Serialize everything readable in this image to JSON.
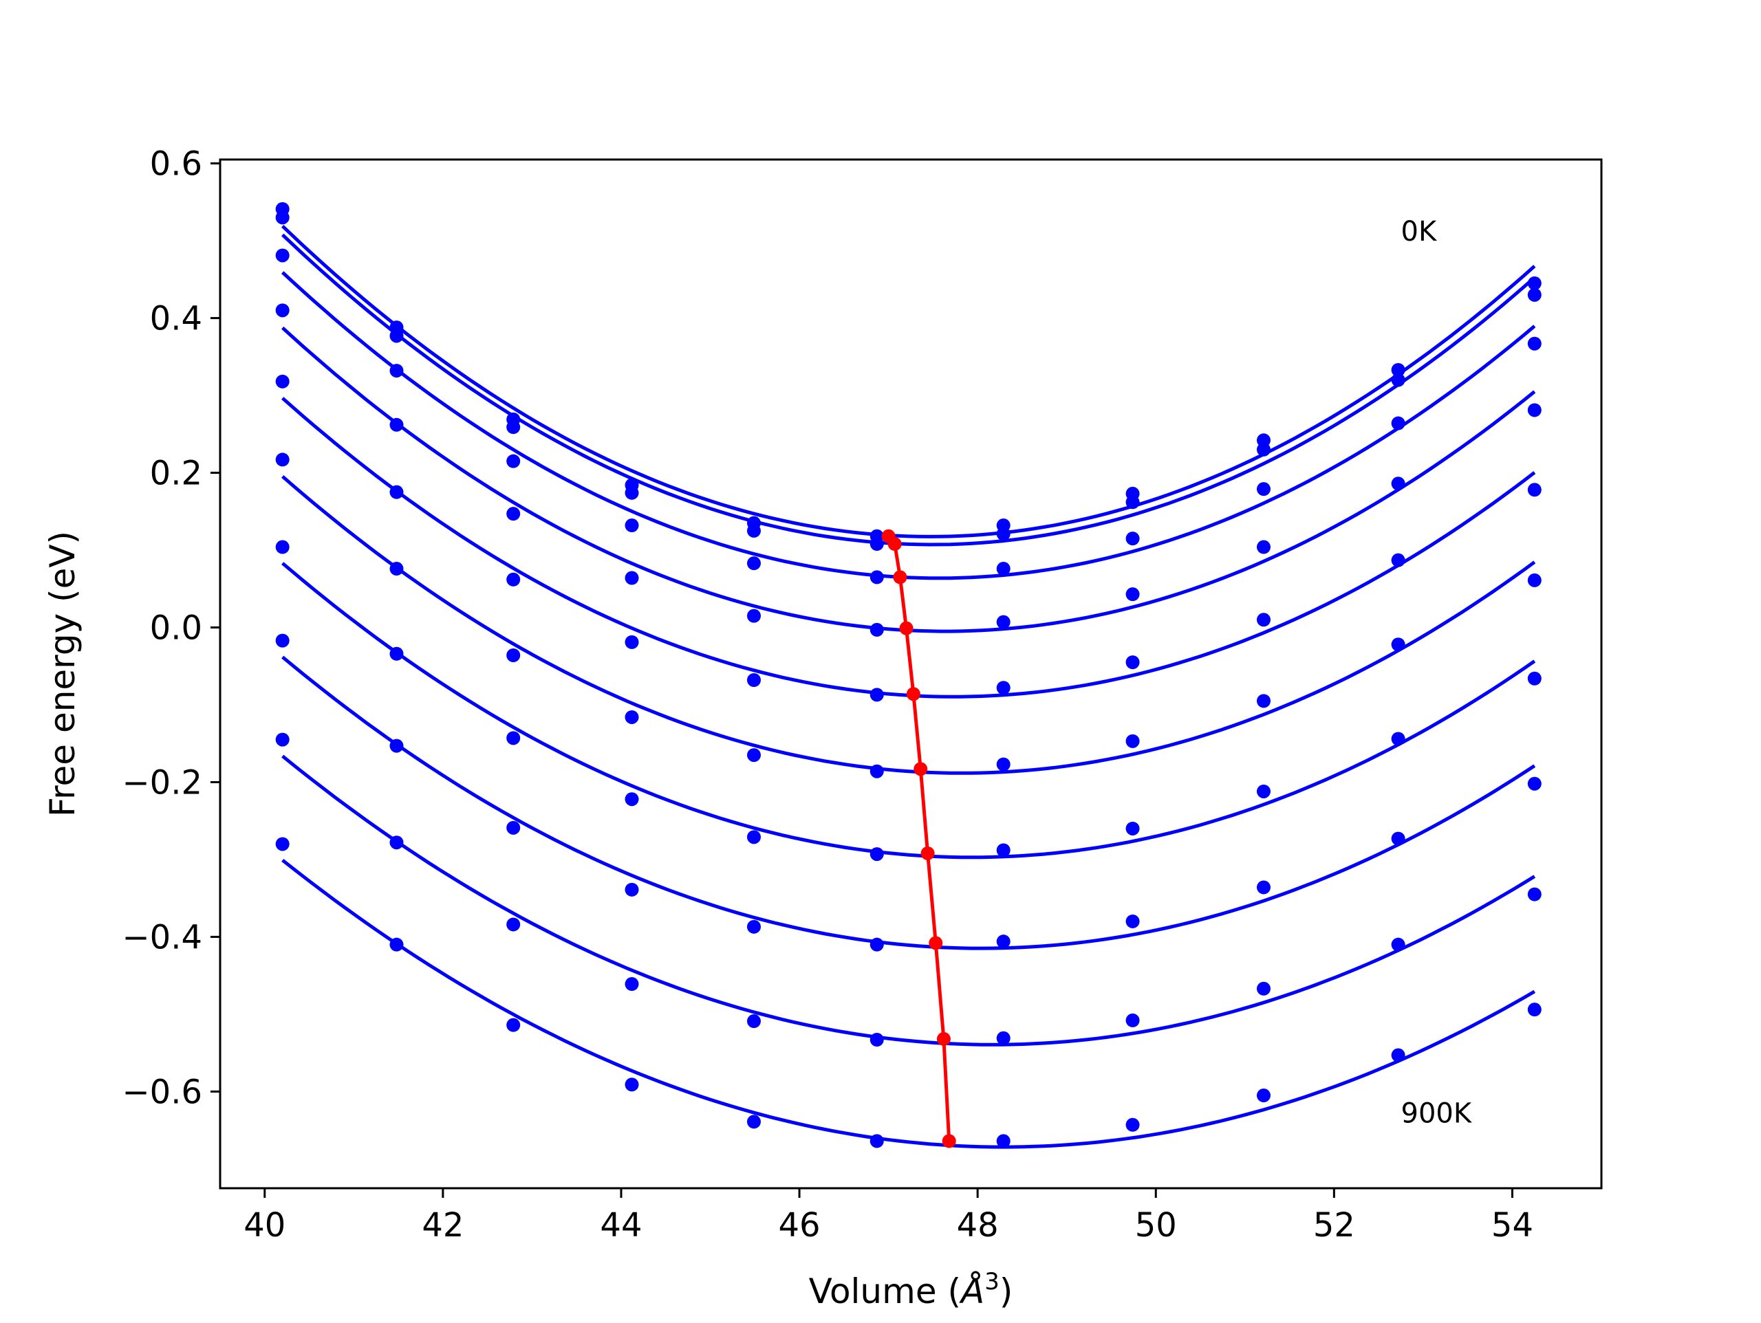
{
  "chart_data": {
    "type": "line",
    "title": "",
    "xlabel": "Volume (",
    "xlabel_symbol": "Å",
    "xlabel_exp": "3",
    "xlabel_close": ")",
    "ylabel": "Free energy (eV)",
    "xlim": [
      39.5,
      55.0
    ],
    "ylim": [
      -0.725,
      0.605
    ],
    "xticks": [
      40,
      42,
      44,
      46,
      48,
      50,
      52,
      54
    ],
    "xtick_labels": [
      "40",
      "42",
      "44",
      "46",
      "48",
      "50",
      "52",
      "54"
    ],
    "yticks": [
      0.6,
      0.4,
      0.2,
      0.0,
      -0.2,
      -0.4,
      -0.6
    ],
    "ytick_labels": [
      "0.6",
      "0.4",
      "0.2",
      "0.0",
      "−0.2",
      "−0.4",
      "−0.6"
    ],
    "grid": false,
    "annotations": [
      {
        "text": "0K",
        "x": 52.75,
        "y": 0.5
      },
      {
        "text": "900K",
        "x": 52.75,
        "y": -0.64
      }
    ],
    "volumes": [
      40.2,
      41.48,
      42.79,
      44.12,
      45.49,
      46.87,
      48.29,
      49.74,
      51.21,
      52.72,
      54.25
    ],
    "series": [
      {
        "values": [
          0.541,
          0.388,
          0.269,
          0.184,
          0.135,
          0.118,
          0.132,
          0.173,
          0.242,
          0.333,
          0.445
        ]
      },
      {
        "values": [
          0.53,
          0.377,
          0.259,
          0.174,
          0.125,
          0.108,
          0.121,
          0.162,
          0.23,
          0.32,
          0.43
        ]
      },
      {
        "values": [
          0.481,
          0.332,
          0.215,
          0.132,
          0.083,
          0.065,
          0.076,
          0.115,
          0.179,
          0.264,
          0.367
        ]
      },
      {
        "values": [
          0.41,
          0.262,
          0.147,
          0.064,
          0.015,
          -0.003,
          0.007,
          0.043,
          0.104,
          0.186,
          0.281
        ]
      },
      {
        "values": [
          0.318,
          0.175,
          0.062,
          -0.019,
          -0.068,
          -0.087,
          -0.078,
          -0.045,
          0.01,
          0.087,
          0.178
        ]
      },
      {
        "values": [
          0.217,
          0.076,
          -0.036,
          -0.116,
          -0.165,
          -0.186,
          -0.177,
          -0.147,
          -0.095,
          -0.022,
          0.061
        ]
      },
      {
        "values": [
          0.104,
          -0.034,
          -0.143,
          -0.222,
          -0.271,
          -0.293,
          -0.288,
          -0.26,
          -0.212,
          -0.144,
          -0.066
        ]
      },
      {
        "values": [
          -0.017,
          -0.153,
          -0.259,
          -0.339,
          -0.387,
          -0.41,
          -0.406,
          -0.38,
          -0.336,
          -0.273,
          -0.202
        ]
      },
      {
        "values": [
          -0.145,
          -0.278,
          -0.384,
          -0.461,
          -0.509,
          -0.533,
          -0.531,
          -0.508,
          -0.467,
          -0.41,
          -0.345
        ]
      },
      {
        "values": [
          -0.28,
          -0.41,
          -0.514,
          -0.591,
          -0.639,
          -0.664,
          -0.664,
          -0.643,
          -0.605,
          -0.553,
          -0.494
        ]
      }
    ],
    "minima": {
      "x": [
        47.0,
        47.07,
        47.13,
        47.2,
        47.28,
        47.36,
        47.44,
        47.53,
        47.62,
        47.68
      ],
      "y": [
        0.118,
        0.108,
        0.065,
        -0.001,
        -0.086,
        -0.183,
        -0.292,
        -0.408,
        -0.532,
        -0.664
      ]
    },
    "colors": {
      "curves": "#0000ff",
      "minima": "#ff0000",
      "axes": "#000000"
    }
  }
}
